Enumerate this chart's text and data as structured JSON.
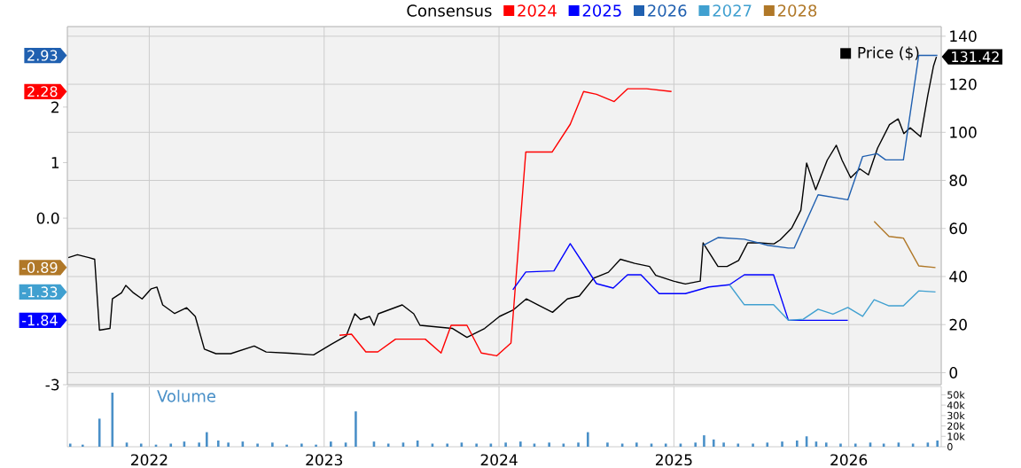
{
  "chart_data": [
    {
      "type": "line",
      "legend_title": "Consensus",
      "legend": "top right",
      "grid": true,
      "tick_labels": "y",
      "xlim": [
        "2021-07-14",
        "2026-07-13"
      ],
      "xticks": [
        "2022",
        "2023",
        "2024",
        "2025",
        "2026"
      ],
      "ylim": [
        -3,
        3.45
      ],
      "yticks": [
        2,
        1,
        {
          "value": 0,
          "label": "0.0"
        },
        -3
      ],
      "y2lim": [
        -5,
        144
      ],
      "y2ticks": [
        0,
        20,
        40,
        60,
        80,
        100,
        120,
        140
      ],
      "annotations": [
        "2.28",
        "-1.84",
        "2.93",
        "-1.33",
        "-0.89"
      ],
      "series": [
        {
          "name": "2024",
          "color": "#ff0000",
          "x": [
            "2023-02-02",
            "2023-02-27",
            "2023-03-29",
            "2023-04-23",
            "2023-05-30",
            "2023-07-31",
            "2023-09-02",
            "2023-09-23",
            "2023-10-26",
            "2023-11-25",
            "2023-12-27",
            "2024-01-26",
            "2024-02-26",
            "2024-04-21",
            "2024-05-29",
            "2024-06-26",
            "2024-07-23",
            "2024-08-29",
            "2024-09-26",
            "2024-11-05",
            "2024-12-27"
          ],
          "values": [
            -2.11,
            -2.09,
            -2.41,
            -2.41,
            -2.18,
            -2.18,
            -2.43,
            -1.93,
            -1.93,
            -2.43,
            -2.48,
            -2.25,
            1.19,
            1.19,
            1.69,
            2.28,
            2.23,
            2.1,
            2.33,
            2.33,
            2.28
          ]
        },
        {
          "name": "2025",
          "color": "#0000ff",
          "x": [
            "2024-01-30",
            "2024-02-26",
            "2024-04-25",
            "2024-05-29",
            "2024-07-23",
            "2024-08-27",
            "2024-09-26",
            "2024-10-24",
            "2024-12-01",
            "2025-01-25",
            "2025-03-15",
            "2025-04-27",
            "2025-05-28",
            "2025-07-28",
            "2025-08-28",
            "2025-12-30"
          ],
          "values": [
            -1.29,
            -0.97,
            -0.95,
            -0.46,
            -1.18,
            -1.26,
            -1.02,
            -1.02,
            -1.36,
            -1.36,
            -1.24,
            -1.2,
            -1.02,
            -1.02,
            -1.84,
            -1.84
          ]
        },
        {
          "name": "2026",
          "color": "#2060b0",
          "x": [
            "2025-03-03",
            "2025-04-03",
            "2025-05-28",
            "2025-07-16",
            "2025-08-28",
            "2025-09-09",
            "2025-10-29",
            "2025-12-30",
            "2026-01-30",
            "2026-03-01",
            "2026-03-19",
            "2026-04-25",
            "2026-05-27",
            "2026-07-05"
          ],
          "values": [
            -0.49,
            -0.35,
            -0.38,
            -0.49,
            -0.54,
            -0.54,
            0.42,
            0.33,
            1.11,
            1.16,
            1.05,
            1.05,
            2.93,
            2.93
          ]
        },
        {
          "name": "2027",
          "color": "#40a0d0",
          "x": [
            "2025-04-27",
            "2025-05-28",
            "2025-07-28",
            "2025-08-28",
            "2025-09-28",
            "2025-10-29",
            "2025-11-29",
            "2025-12-30",
            "2026-01-30",
            "2026-02-23",
            "2026-03-26",
            "2026-04-25",
            "2026-05-27",
            "2026-07-01"
          ],
          "values": [
            -1.2,
            -1.56,
            -1.56,
            -1.84,
            -1.82,
            -1.64,
            -1.73,
            -1.61,
            -1.77,
            -1.47,
            -1.58,
            -1.58,
            -1.31,
            -1.33
          ]
        },
        {
          "name": "2028",
          "color": "#b07828",
          "x": [
            "2026-02-23",
            "2026-03-26",
            "2026-04-25",
            "2026-05-27",
            "2026-07-01"
          ],
          "values": [
            -0.06,
            -0.33,
            -0.36,
            -0.86,
            -0.89
          ]
        },
        {
          "name": "Price ($)",
          "color": "#000000",
          "axis": "y2",
          "x": [
            "2021-07-16",
            "2021-08-04",
            "2021-08-28",
            "2021-09-09",
            "2021-09-19",
            "2021-10-11",
            "2021-10-16",
            "2021-11-04",
            "2021-11-13",
            "2021-11-29",
            "2021-12-17",
            "2022-01-05",
            "2022-01-17",
            "2022-01-29",
            "2022-02-23",
            "2022-03-20",
            "2022-04-07",
            "2022-04-26",
            "2022-05-20",
            "2022-06-20",
            "2022-08-08",
            "2022-09-02",
            "2022-10-21",
            "2022-12-10",
            "2023-01-16",
            "2023-02-16",
            "2023-03-06",
            "2023-03-18",
            "2023-04-06",
            "2023-04-15",
            "2023-04-24",
            "2023-06-13",
            "2023-07-07",
            "2023-07-20",
            "2023-09-26",
            "2023-10-26",
            "2023-12-02",
            "2024-01-02",
            "2024-01-30",
            "2024-02-27",
            "2024-03-22",
            "2024-04-22",
            "2024-05-23",
            "2024-06-17",
            "2024-07-17",
            "2024-08-17",
            "2024-09-11",
            "2024-10-11",
            "2024-11-11",
            "2024-11-24",
            "2024-12-31",
            "2025-01-25",
            "2025-02-25",
            "2025-03-03",
            "2025-04-03",
            "2025-04-22",
            "2025-05-16",
            "2025-06-04",
            "2025-06-28",
            "2025-07-29",
            "2025-08-11",
            "2025-09-04",
            "2025-09-23",
            "2025-10-05",
            "2025-10-24",
            "2025-11-17",
            "2025-12-06",
            "2025-12-18",
            "2026-01-05",
            "2026-01-24",
            "2026-02-11",
            "2026-03-02",
            "2026-03-27",
            "2026-04-14",
            "2026-04-26",
            "2026-05-09",
            "2026-05-31",
            "2026-06-15",
            "2026-06-27",
            "2026-07-03"
          ],
          "values": [
            47.9,
            49.1,
            47.9,
            47.2,
            17.7,
            18.4,
            30.7,
            33.2,
            36.3,
            33.2,
            30.7,
            34.9,
            35.6,
            28.2,
            24.6,
            27.0,
            23.4,
            9.8,
            7.9,
            7.9,
            11.1,
            8.6,
            8.1,
            7.4,
            11.8,
            15.3,
            24.5,
            22.1,
            23.4,
            19.7,
            24.5,
            28.2,
            24.5,
            19.7,
            18.4,
            14.7,
            18.4,
            23.4,
            26.0,
            30.7,
            28.2,
            25.1,
            30.7,
            31.9,
            39.3,
            41.8,
            47.2,
            45.5,
            44.2,
            40.5,
            38.1,
            36.9,
            38.1,
            54.0,
            44.2,
            44.2,
            46.7,
            54.0,
            54.0,
            53.6,
            55.3,
            60.2,
            67.6,
            87.2,
            76.1,
            88.4,
            94.6,
            88.4,
            81.1,
            84.8,
            82.3,
            93.4,
            103.2,
            105.6,
            99.5,
            101.9,
            98.2,
            115.5,
            127.7,
            131.42
          ],
          "value_labels": [
            null,
            null,
            null,
            null,
            null,
            null,
            null,
            null,
            null,
            null,
            null,
            null,
            null,
            null,
            null,
            null,
            null,
            null,
            null,
            null,
            null,
            null,
            null,
            null,
            null,
            null,
            null,
            null,
            null,
            null,
            null,
            null,
            null,
            null,
            null,
            null,
            null,
            null,
            null,
            null,
            null,
            null,
            null,
            null,
            null,
            null,
            null,
            null,
            null,
            null,
            null,
            null,
            null,
            null,
            null,
            null,
            null,
            null,
            null,
            null,
            null,
            null,
            null,
            null,
            null,
            null,
            null,
            null,
            null,
            null,
            null,
            null,
            null,
            null,
            null,
            null,
            null,
            null,
            null,
            "131.42"
          ]
        }
      ]
    },
    {
      "type": "bar",
      "title": "Volume",
      "color": "#4a90c8",
      "grid": "x",
      "xlim": [
        "2021-07-14",
        "2026-07-13"
      ],
      "xticks": [
        "2022",
        "2023",
        "2024",
        "2025",
        "2026"
      ],
      "ylim": [
        0,
        58000
      ],
      "yticks": [
        0,
        {
          "value": 10000,
          "label": "10k"
        },
        {
          "value": 20000,
          "label": "20k"
        },
        {
          "value": 30000,
          "label": "30k"
        },
        {
          "value": 40000,
          "label": "40k"
        },
        {
          "value": 50000,
          "label": "50k"
        }
      ],
      "x": [
        "2021-07-20",
        "2021-08-15",
        "2021-09-19",
        "2021-10-16",
        "2021-11-15",
        "2021-12-15",
        "2022-01-15",
        "2022-02-15",
        "2022-03-15",
        "2022-04-15",
        "2022-05-01",
        "2022-05-25",
        "2022-06-15",
        "2022-07-15",
        "2022-08-15",
        "2022-09-15",
        "2022-10-15",
        "2022-11-15",
        "2022-12-15",
        "2023-01-15",
        "2023-02-15",
        "2023-03-08",
        "2023-04-15",
        "2023-05-15",
        "2023-06-15",
        "2023-07-15",
        "2023-08-15",
        "2023-09-15",
        "2023-10-15",
        "2023-11-15",
        "2023-12-15",
        "2024-01-15",
        "2024-02-15",
        "2024-03-15",
        "2024-04-15",
        "2024-05-15",
        "2024-06-15",
        "2024-07-05",
        "2024-08-15",
        "2024-09-15",
        "2024-10-15",
        "2024-11-15",
        "2024-12-15",
        "2025-01-15",
        "2025-02-15",
        "2025-03-05",
        "2025-03-25",
        "2025-04-15",
        "2025-05-15",
        "2025-06-15",
        "2025-07-15",
        "2025-08-15",
        "2025-09-15",
        "2025-10-05",
        "2025-10-25",
        "2025-11-15",
        "2025-12-15",
        "2026-01-15",
        "2026-02-15",
        "2026-03-15",
        "2026-04-15",
        "2026-05-15",
        "2026-06-15",
        "2026-07-05"
      ],
      "values": [
        3000,
        2000,
        27000,
        52000,
        4000,
        3000,
        2000,
        3000,
        5000,
        4000,
        14000,
        6000,
        4000,
        5000,
        3000,
        4000,
        2000,
        3000,
        2000,
        5000,
        4000,
        34000,
        5000,
        3000,
        4000,
        6000,
        3000,
        3000,
        4000,
        3000,
        3000,
        4000,
        5000,
        3000,
        4000,
        3000,
        4000,
        14000,
        4000,
        3000,
        4000,
        3000,
        3000,
        3000,
        4000,
        11000,
        7000,
        4000,
        3000,
        3000,
        4000,
        5000,
        6000,
        10000,
        5000,
        4000,
        3000,
        3000,
        4000,
        3000,
        4000,
        3000,
        4000,
        6000
      ]
    }
  ]
}
